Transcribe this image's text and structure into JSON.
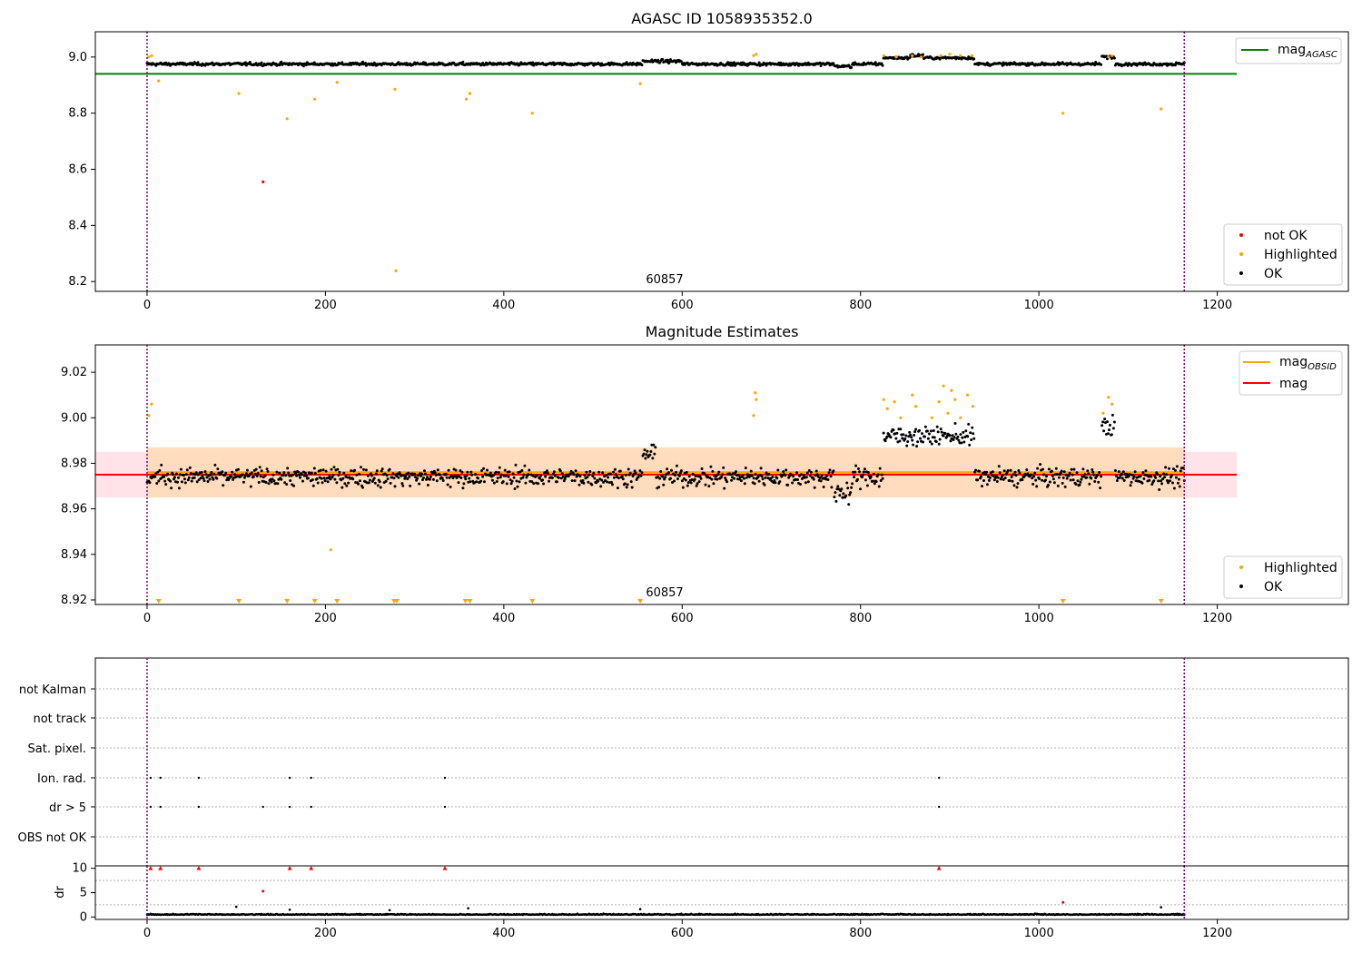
{
  "chart_data": [
    {
      "type": "scatter",
      "title": "AGASC ID 1058935352.0",
      "xlim": [
        -58,
        1347
      ],
      "ylim": [
        8.165,
        9.09
      ],
      "xticks": [
        0,
        200,
        400,
        600,
        800,
        1000,
        1200
      ],
      "yticks": [
        8.2,
        8.4,
        8.6,
        8.8,
        9.0
      ],
      "ytick_labels": [
        "8.2",
        "8.4",
        "8.6",
        "8.8",
        "9.0"
      ],
      "obsid_label": "60857",
      "obsid_label_x": 580,
      "vlines": [
        0,
        1163
      ],
      "hline": {
        "name": "mag_AGASC",
        "value": 8.94,
        "x_range": [
          -58,
          1222
        ],
        "color": "#008000"
      },
      "ok_series": {
        "name": "OK",
        "color": "#000000",
        "x_range": [
          0,
          1163
        ],
        "n": 1160,
        "baseline": 8.975,
        "noise": 0.009,
        "bumps": [
          [
            825,
            928,
            0.022
          ],
          [
            1070,
            1085,
            0.025
          ],
          [
            555,
            600,
            0.01
          ],
          [
            855,
            870,
            0.008
          ]
        ],
        "dips": [
          [
            770,
            790,
            -0.01
          ]
        ]
      },
      "highlighted_series": {
        "name": "Highlighted",
        "color": "#ffa500",
        "points": [
          [
            2,
            9.0
          ],
          [
            5,
            9.005
          ],
          [
            13,
            8.915
          ],
          [
            103,
            8.87
          ],
          [
            157,
            8.78
          ],
          [
            188,
            8.85
          ],
          [
            213,
            8.91
          ],
          [
            278,
            8.885
          ],
          [
            279,
            8.238
          ],
          [
            358,
            8.85
          ],
          [
            362,
            8.87
          ],
          [
            432,
            8.8
          ],
          [
            553,
            8.905
          ],
          [
            680,
            9.005
          ],
          [
            683,
            9.01
          ],
          [
            826,
            9.005
          ],
          [
            840,
            9.0
          ],
          [
            858,
            9.005
          ],
          [
            868,
            9.0
          ],
          [
            890,
            9.005
          ],
          [
            900,
            9.01
          ],
          [
            912,
            9.005
          ],
          [
            925,
            9.005
          ],
          [
            1027,
            8.8
          ],
          [
            1078,
            9.0
          ],
          [
            1082,
            9.005
          ],
          [
            1137,
            8.815
          ]
        ]
      },
      "notok_series": {
        "name": "not OK",
        "color": "#ff0000",
        "points": [
          [
            130,
            8.555
          ]
        ]
      },
      "legend_lines": [
        {
          "label": "mag",
          "sub": "AGASC",
          "color": "#008000"
        }
      ],
      "legend_points": [
        {
          "label": "not OK",
          "color": "#ff0000"
        },
        {
          "label": "Highlighted",
          "color": "#ffa500"
        },
        {
          "label": "OK",
          "color": "#000000"
        }
      ]
    },
    {
      "type": "scatter",
      "title": "Magnitude Estimates",
      "xlim": [
        -58,
        1347
      ],
      "ylim": [
        8.918,
        9.032
      ],
      "xticks": [
        0,
        200,
        400,
        600,
        800,
        1000,
        1200
      ],
      "yticks": [
        8.92,
        8.94,
        8.96,
        8.98,
        9.0,
        9.02
      ],
      "ytick_labels": [
        "8.92",
        "8.94",
        "8.96",
        "8.98",
        "9.00",
        "9.02"
      ],
      "obsid_label": "60857",
      "obsid_label_x": 580,
      "vlines": [
        0,
        1163
      ],
      "mag_line": {
        "name": "mag",
        "value": 8.975,
        "x_range": [
          -58,
          1222
        ],
        "color": "#ff0000"
      },
      "mag_obsid": {
        "name": "mag_OBSID",
        "value": 8.976,
        "x_range": [
          0,
          1163
        ],
        "color": "#ffa500"
      },
      "band_mag": {
        "low": 8.965,
        "high": 8.985,
        "color": "#ffc0cb"
      },
      "band_obsid": {
        "low": 8.965,
        "high": 8.987,
        "color": "#ffdab9"
      },
      "ok_series": {
        "name": "OK",
        "color": "#000000",
        "x_range": [
          0,
          1163
        ],
        "n": 1160,
        "baseline": 8.974,
        "noise": 0.007,
        "bumps": [
          [
            825,
            928,
            0.018
          ],
          [
            1070,
            1085,
            0.022
          ],
          [
            555,
            570,
            0.01
          ]
        ],
        "dips": [
          [
            770,
            790,
            -0.01
          ]
        ]
      },
      "highlighted_series": {
        "name": "Highlighted",
        "color": "#ffa500",
        "points": [
          [
            2,
            9.001
          ],
          [
            5,
            9.006
          ],
          [
            206,
            8.942
          ],
          [
            680,
            9.001
          ],
          [
            682,
            9.011
          ],
          [
            683,
            9.008
          ],
          [
            826,
            9.008
          ],
          [
            830,
            9.004
          ],
          [
            838,
            9.007
          ],
          [
            845,
            9.0
          ],
          [
            858,
            9.01
          ],
          [
            862,
            9.005
          ],
          [
            880,
            9.0
          ],
          [
            888,
            9.007
          ],
          [
            893,
            9.014
          ],
          [
            898,
            9.002
          ],
          [
            902,
            9.012
          ],
          [
            906,
            9.008
          ],
          [
            912,
            9.0
          ],
          [
            920,
            9.01
          ],
          [
            926,
            9.005
          ],
          [
            1072,
            9.002
          ],
          [
            1078,
            9.009
          ],
          [
            1082,
            9.006
          ]
        ]
      },
      "clipped_markers": {
        "color": "#ffa500",
        "x": [
          13,
          103,
          157,
          188,
          213,
          277,
          280,
          357,
          362,
          432,
          553,
          1027,
          1137
        ]
      },
      "legend_lines": [
        {
          "label": "mag",
          "sub": "OBSID",
          "color": "#ffa500"
        },
        {
          "label": "mag",
          "sub": "",
          "color": "#ff0000"
        }
      ],
      "legend_points": [
        {
          "label": "Highlighted",
          "color": "#ffa500"
        },
        {
          "label": "OK",
          "color": "#000000"
        }
      ]
    },
    {
      "type": "scatter",
      "title": "",
      "xlim": [
        -58,
        1347
      ],
      "category_labels": [
        "not Kalman",
        "not track",
        "Sat. pixel.",
        "Ion. rad.",
        "dr > 5",
        "OBS not OK"
      ],
      "vlines": [
        0,
        1163
      ],
      "flags": {
        "Ion. rad.": [
          4,
          15,
          58,
          160,
          184,
          334,
          888
        ],
        "dr > 5": [
          4,
          15,
          58,
          130,
          160,
          184,
          334,
          888
        ]
      },
      "flag_color": "#000000"
    },
    {
      "type": "scatter",
      "title": "",
      "xlim": [
        -58,
        1347
      ],
      "ylim": [
        -0.5,
        10.5
      ],
      "xticks": [
        0,
        200,
        400,
        600,
        800,
        1000,
        1200
      ],
      "yticks": [
        0,
        5,
        10
      ],
      "ytick_labels": [
        "0",
        "5",
        "10"
      ],
      "ylabel": "dr",
      "vlines": [
        0,
        1163
      ],
      "hlines": [
        2.5,
        7.5
      ],
      "dr_series": {
        "color": "#000000",
        "x_range": [
          0,
          1163
        ],
        "n": 1160,
        "mean": 0.45,
        "noise": 0.25
      },
      "dr_outliers": [
        [
          100,
          2.1
        ],
        [
          160,
          1.5
        ],
        [
          272,
          1.4
        ],
        [
          360,
          1.8
        ],
        [
          553,
          1.6
        ],
        [
          1137,
          2.0
        ]
      ],
      "capped_markers": {
        "color": "#ff0000",
        "x": [
          4,
          15,
          58,
          160,
          184,
          334,
          888
        ]
      },
      "dr_red_points": [
        [
          130,
          5.3
        ],
        [
          1027,
          3.0
        ]
      ]
    }
  ]
}
